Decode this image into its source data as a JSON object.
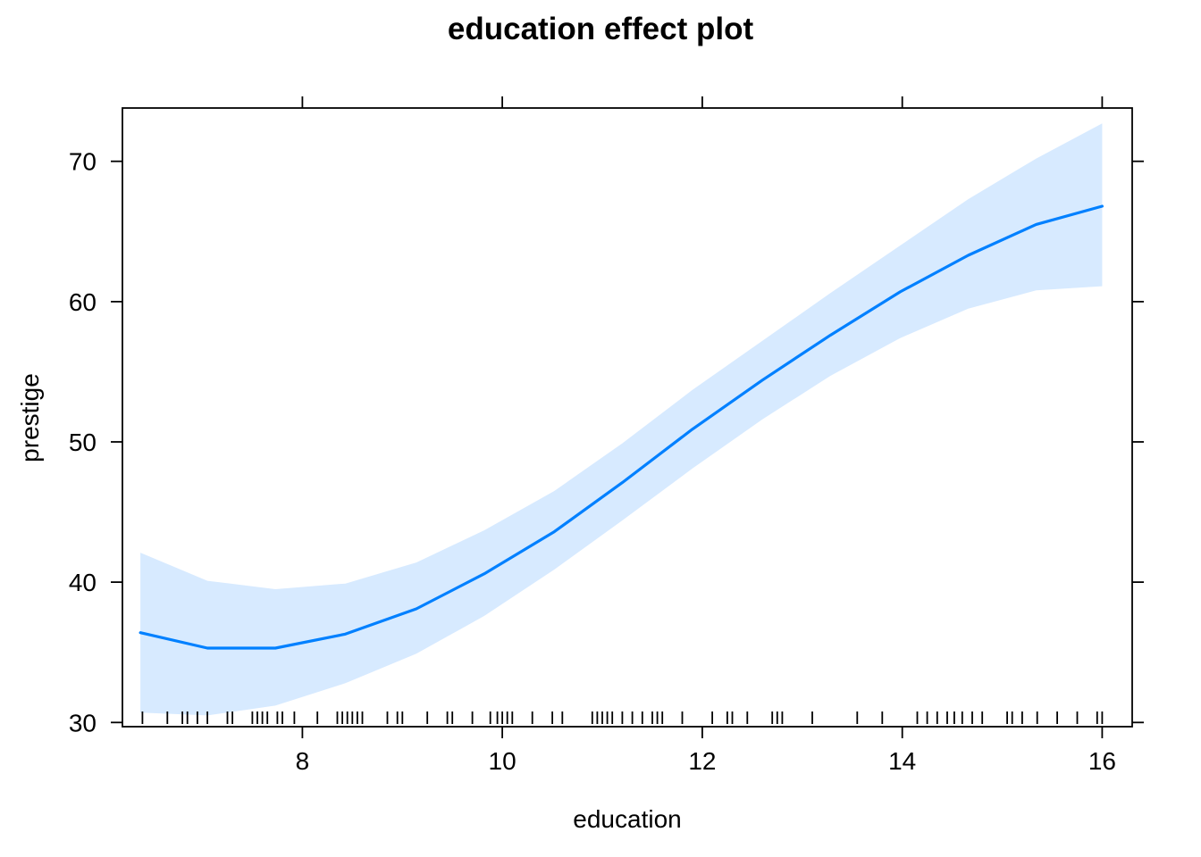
{
  "chart_data": {
    "type": "line",
    "title": "education effect plot",
    "xlabel": "education",
    "ylabel": "prestige",
    "xlim": [
      6.2,
      16.3
    ],
    "ylim": [
      29.7,
      73.8
    ],
    "x_ticks": [
      8,
      10,
      12,
      14,
      16
    ],
    "y_ticks": [
      30,
      40,
      50,
      60,
      70
    ],
    "grid": false,
    "legend": "none",
    "colors": {
      "line": "#0080ff",
      "band": "#d7eaff"
    },
    "series": [
      {
        "x": [
          6.38,
          7.05,
          7.73,
          8.43,
          9.14,
          9.82,
          10.52,
          11.2,
          11.9,
          12.6,
          13.28,
          13.98,
          14.66,
          15.34,
          16.0
        ],
        "y": [
          36.4,
          35.3,
          35.3,
          36.3,
          38.1,
          40.6,
          43.6,
          47.1,
          50.9,
          54.4,
          57.6,
          60.7,
          63.3,
          65.5,
          66.8
        ],
        "lower": [
          30.7,
          30.5,
          31.2,
          32.8,
          34.9,
          37.6,
          40.9,
          44.4,
          48.1,
          51.6,
          54.7,
          57.4,
          59.5,
          60.8,
          61.1
        ],
        "upper": [
          42.1,
          40.1,
          39.5,
          39.9,
          41.4,
          43.7,
          46.5,
          49.9,
          53.7,
          57.2,
          60.6,
          64.0,
          67.3,
          70.2,
          72.7
        ]
      }
    ],
    "rug": [
      6.4,
      6.65,
      6.8,
      6.85,
      6.95,
      7.05,
      7.25,
      7.3,
      7.5,
      7.55,
      7.6,
      7.65,
      7.75,
      7.8,
      7.92,
      8.15,
      8.35,
      8.4,
      8.45,
      8.5,
      8.55,
      8.6,
      8.85,
      8.95,
      9.0,
      9.25,
      9.45,
      9.5,
      9.7,
      9.88,
      9.95,
      10.0,
      10.05,
      10.1,
      10.3,
      10.5,
      10.6,
      10.9,
      10.95,
      11.0,
      11.05,
      11.1,
      11.2,
      11.3,
      11.4,
      11.5,
      11.55,
      11.6,
      11.8,
      12.1,
      12.25,
      12.3,
      12.45,
      12.7,
      12.75,
      12.8,
      13.1,
      13.55,
      13.8,
      14.15,
      14.25,
      14.35,
      14.45,
      14.52,
      14.6,
      14.7,
      14.8,
      15.05,
      15.1,
      15.2,
      15.35,
      15.55,
      15.75,
      15.95,
      16.0
    ]
  }
}
